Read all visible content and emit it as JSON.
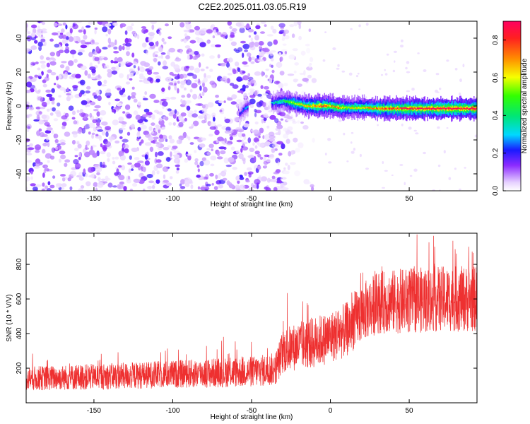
{
  "title": "C2E2.2025.011.03.05.R19",
  "chart_data": [
    {
      "type": "heatmap",
      "title": "",
      "xlabel": "Height of straight line (km)",
      "ylabel": "Frequency (Hz)",
      "xlim": [
        -193,
        93
      ],
      "ylim": [
        -50,
        50
      ],
      "xticks": [
        -150,
        -100,
        -50,
        0,
        50
      ],
      "yticks": [
        -40,
        -20,
        0,
        20,
        40
      ],
      "colorbar": {
        "label": "Normalized spectral amplitude",
        "range": [
          0,
          0.9
        ],
        "ticks": [
          0.0,
          0.2,
          0.4,
          0.6,
          0.8
        ],
        "tick_labels": [
          "0.0",
          "0.2",
          "0.4",
          "0.6",
          "0.8"
        ]
      },
      "features": {
        "noise_region_x": [
          -193,
          -30
        ],
        "noise_typical_amplitude": 0.1,
        "fade_region_x": [
          -30,
          -5
        ],
        "signal_band": [
          {
            "x": -58,
            "y": -5,
            "amplitude": 0.2
          },
          {
            "x": -56,
            "y": -3,
            "amplitude": 0.25
          },
          {
            "x": -54,
            "y": -1,
            "amplitude": 0.3
          },
          {
            "x": -36,
            "y": 2,
            "amplitude": 0.35
          },
          {
            "x": -30,
            "y": 3,
            "amplitude": 0.45
          },
          {
            "x": -25,
            "y": 2,
            "amplitude": 0.55
          },
          {
            "x": -20,
            "y": 1,
            "amplitude": 0.6
          },
          {
            "x": -15,
            "y": 0,
            "amplitude": 0.65
          },
          {
            "x": -10,
            "y": 0,
            "amplitude": 0.75
          },
          {
            "x": -5,
            "y": 0,
            "amplitude": 0.8
          },
          {
            "x": 0,
            "y": 0,
            "amplitude": 0.7
          },
          {
            "x": 5,
            "y": -1,
            "amplitude": 0.75
          },
          {
            "x": 10,
            "y": -1,
            "amplitude": 0.6
          },
          {
            "x": 20,
            "y": -1,
            "amplitude": 0.65
          },
          {
            "x": 30,
            "y": -1.5,
            "amplitude": 0.75
          },
          {
            "x": 40,
            "y": -1.5,
            "amplitude": 0.8
          },
          {
            "x": 50,
            "y": -1.5,
            "amplitude": 0.85
          },
          {
            "x": 60,
            "y": -1.5,
            "amplitude": 0.85
          },
          {
            "x": 70,
            "y": -1.5,
            "amplitude": 0.9
          },
          {
            "x": 80,
            "y": -1.5,
            "amplitude": 0.9
          },
          {
            "x": 90,
            "y": -1.5,
            "amplitude": 0.9
          }
        ]
      }
    },
    {
      "type": "line",
      "title": "",
      "xlabel": "Height of straight line (km)",
      "ylabel": "SNR (10 * V/V)",
      "xlim": [
        -193,
        93
      ],
      "ylim": [
        0,
        980
      ],
      "xticks": [
        -150,
        -100,
        -50,
        0,
        50
      ],
      "yticks": [
        200,
        400,
        600,
        800
      ],
      "color": "#ee3030",
      "series": [
        {
          "trend_x": [
            -193,
            -150,
            -100,
            -50,
            -35,
            -30,
            -20,
            -10,
            0,
            10,
            20,
            30,
            50,
            70,
            93
          ],
          "trend_mean": [
            140,
            150,
            165,
            180,
            195,
            300,
            330,
            350,
            380,
            420,
            520,
            580,
            590,
            600,
            600
          ],
          "trend_halfspread": [
            70,
            75,
            80,
            90,
            95,
            130,
            140,
            150,
            150,
            160,
            170,
            180,
            190,
            190,
            190
          ]
        }
      ]
    }
  ]
}
